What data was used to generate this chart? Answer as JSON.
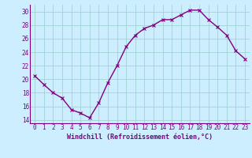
{
  "x": [
    0,
    1,
    2,
    3,
    4,
    5,
    6,
    7,
    8,
    9,
    10,
    11,
    12,
    13,
    14,
    15,
    16,
    17,
    18,
    19,
    20,
    21,
    22,
    23
  ],
  "y": [
    20.5,
    19.2,
    18.0,
    17.2,
    15.5,
    15.0,
    14.3,
    16.5,
    19.5,
    22.0,
    24.8,
    26.5,
    27.5,
    28.0,
    28.8,
    28.8,
    29.5,
    30.2,
    30.2,
    28.8,
    27.7,
    26.5,
    24.2,
    23.0
  ],
  "line_color": "#800080",
  "marker": "x",
  "marker_size": 3,
  "linewidth": 1.0,
  "bg_color": "#cceeff",
  "grid_color": "#99cccc",
  "xlabel": "Windchill (Refroidissement éolien,°C)",
  "xlabel_color": "#800080",
  "xlabel_fontsize": 6.0,
  "tick_color": "#800080",
  "tick_fontsize": 5.5,
  "ylim": [
    13.5,
    31.0
  ],
  "yticks": [
    14,
    16,
    18,
    20,
    22,
    24,
    26,
    28,
    30
  ],
  "xticks": [
    0,
    1,
    2,
    3,
    4,
    5,
    6,
    7,
    8,
    9,
    10,
    11,
    12,
    13,
    14,
    15,
    16,
    17,
    18,
    19,
    20,
    21,
    22,
    23
  ]
}
